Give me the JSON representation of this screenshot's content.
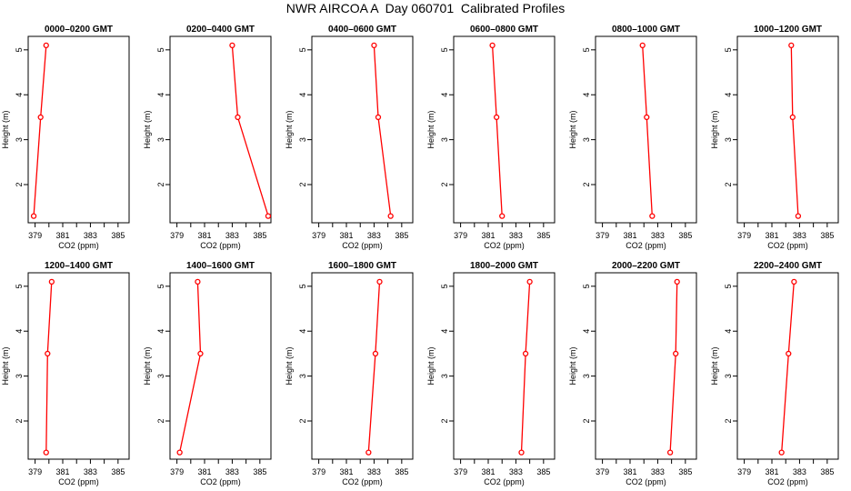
{
  "title": "NWR AIRCOA A  Day 060701  Calibrated Profiles",
  "colors": {
    "line": "#ff0000",
    "marker": "#ff0000",
    "axis": "#000000"
  },
  "chart_data": [
    {
      "type": "line",
      "title": "0000–0200 GMT",
      "xlabel": "CO2 (ppm)",
      "ylabel": "Height (m)",
      "xlim": [
        378.5,
        385.8
      ],
      "ylim": [
        1.15,
        5.3
      ],
      "xticks": [
        "379",
        "381",
        "383",
        "385"
      ],
      "yticks": [
        "2",
        "3",
        "4",
        "5"
      ],
      "grid": false,
      "series": [
        {
          "x": [
            378.9,
            379.4,
            379.8
          ],
          "y": [
            1.3,
            3.5,
            5.1
          ]
        }
      ]
    },
    {
      "type": "line",
      "title": "0200–0400 GMT",
      "xlabel": "CO2 (ppm)",
      "ylabel": "Height (m)",
      "xlim": [
        378.5,
        385.8
      ],
      "ylim": [
        1.15,
        5.3
      ],
      "xticks": [
        "379",
        "381",
        "383",
        "385"
      ],
      "yticks": [
        "2",
        "3",
        "4",
        "5"
      ],
      "grid": false,
      "series": [
        {
          "x": [
            385.6,
            383.4,
            383.0
          ],
          "y": [
            1.3,
            3.5,
            5.1
          ]
        }
      ]
    },
    {
      "type": "line",
      "title": "0400–0600 GMT",
      "xlabel": "CO2 (ppm)",
      "ylabel": "Height (m)",
      "xlim": [
        378.5,
        385.8
      ],
      "ylim": [
        1.15,
        5.3
      ],
      "xticks": [
        "379",
        "381",
        "383",
        "385"
      ],
      "yticks": [
        "2",
        "3",
        "4",
        "5"
      ],
      "grid": false,
      "series": [
        {
          "x": [
            384.2,
            383.3,
            383.0
          ],
          "y": [
            1.3,
            3.5,
            5.1
          ]
        }
      ]
    },
    {
      "type": "line",
      "title": "0600–0800 GMT",
      "xlabel": "CO2 (ppm)",
      "ylabel": "Height (m)",
      "xlim": [
        378.5,
        385.8
      ],
      "ylim": [
        1.15,
        5.3
      ],
      "xticks": [
        "379",
        "381",
        "383",
        "385"
      ],
      "yticks": [
        "2",
        "3",
        "4",
        "5"
      ],
      "grid": false,
      "series": [
        {
          "x": [
            382.0,
            381.6,
            381.3
          ],
          "y": [
            1.3,
            3.5,
            5.1
          ]
        }
      ]
    },
    {
      "type": "line",
      "title": "0800–1000 GMT",
      "xlabel": "CO2 (ppm)",
      "ylabel": "Height (m)",
      "xlim": [
        378.5,
        385.8
      ],
      "ylim": [
        1.15,
        5.3
      ],
      "xticks": [
        "379",
        "381",
        "383",
        "385"
      ],
      "yticks": [
        "2",
        "3",
        "4",
        "5"
      ],
      "grid": false,
      "series": [
        {
          "x": [
            382.6,
            382.2,
            381.9
          ],
          "y": [
            1.3,
            3.5,
            5.1
          ]
        }
      ]
    },
    {
      "type": "line",
      "title": "1000–1200 GMT",
      "xlabel": "CO2 (ppm)",
      "ylabel": "Height (m)",
      "xlim": [
        378.5,
        385.8
      ],
      "ylim": [
        1.15,
        5.3
      ],
      "xticks": [
        "379",
        "381",
        "383",
        "385"
      ],
      "yticks": [
        "2",
        "3",
        "4",
        "5"
      ],
      "grid": false,
      "series": [
        {
          "x": [
            382.9,
            382.5,
            382.4
          ],
          "y": [
            1.3,
            3.5,
            5.1
          ]
        }
      ]
    },
    {
      "type": "line",
      "title": "1200–1400 GMT",
      "xlabel": "CO2 (ppm)",
      "ylabel": "Height (m)",
      "xlim": [
        378.5,
        385.8
      ],
      "ylim": [
        1.15,
        5.3
      ],
      "xticks": [
        "379",
        "381",
        "383",
        "385"
      ],
      "yticks": [
        "2",
        "3",
        "4",
        "5"
      ],
      "grid": false,
      "series": [
        {
          "x": [
            379.8,
            379.9,
            380.2
          ],
          "y": [
            1.3,
            3.5,
            5.1
          ]
        }
      ]
    },
    {
      "type": "line",
      "title": "1400–1600 GMT",
      "xlabel": "CO2 (ppm)",
      "ylabel": "Height (m)",
      "xlim": [
        378.5,
        385.8
      ],
      "ylim": [
        1.15,
        5.3
      ],
      "xticks": [
        "379",
        "381",
        "383",
        "385"
      ],
      "yticks": [
        "2",
        "3",
        "4",
        "5"
      ],
      "grid": false,
      "series": [
        {
          "x": [
            379.2,
            380.7,
            380.5
          ],
          "y": [
            1.3,
            3.5,
            5.1
          ]
        }
      ]
    },
    {
      "type": "line",
      "title": "1600–1800 GMT",
      "xlabel": "CO2 (ppm)",
      "ylabel": "Height (m)",
      "xlim": [
        378.5,
        385.8
      ],
      "ylim": [
        1.15,
        5.3
      ],
      "xticks": [
        "379",
        "381",
        "383",
        "385"
      ],
      "yticks": [
        "2",
        "3",
        "4",
        "5"
      ],
      "grid": false,
      "series": [
        {
          "x": [
            382.6,
            383.1,
            383.4
          ],
          "y": [
            1.3,
            3.5,
            5.1
          ]
        }
      ]
    },
    {
      "type": "line",
      "title": "1800–2000 GMT",
      "xlabel": "CO2 (ppm)",
      "ylabel": "Height (m)",
      "xlim": [
        378.5,
        385.8
      ],
      "ylim": [
        1.15,
        5.3
      ],
      "xticks": [
        "379",
        "381",
        "383",
        "385"
      ],
      "yticks": [
        "2",
        "3",
        "4",
        "5"
      ],
      "grid": false,
      "series": [
        {
          "x": [
            383.4,
            383.7,
            384.0
          ],
          "y": [
            1.3,
            3.5,
            5.1
          ]
        }
      ]
    },
    {
      "type": "line",
      "title": "2000–2200 GMT",
      "xlabel": "CO2 (ppm)",
      "ylabel": "Height (m)",
      "xlim": [
        378.5,
        385.8
      ],
      "ylim": [
        1.15,
        5.3
      ],
      "xticks": [
        "379",
        "381",
        "383",
        "385"
      ],
      "yticks": [
        "2",
        "3",
        "4",
        "5"
      ],
      "grid": false,
      "series": [
        {
          "x": [
            383.9,
            384.3,
            384.4
          ],
          "y": [
            1.3,
            3.5,
            5.1
          ]
        }
      ]
    },
    {
      "type": "line",
      "title": "2200–2400 GMT",
      "xlabel": "CO2 (ppm)",
      "ylabel": "Height (m)",
      "xlim": [
        378.5,
        385.8
      ],
      "ylim": [
        1.15,
        5.3
      ],
      "xticks": [
        "379",
        "381",
        "383",
        "385"
      ],
      "yticks": [
        "2",
        "3",
        "4",
        "5"
      ],
      "grid": false,
      "series": [
        {
          "x": [
            381.7,
            382.2,
            382.6
          ],
          "y": [
            1.3,
            3.5,
            5.1
          ]
        }
      ]
    }
  ]
}
